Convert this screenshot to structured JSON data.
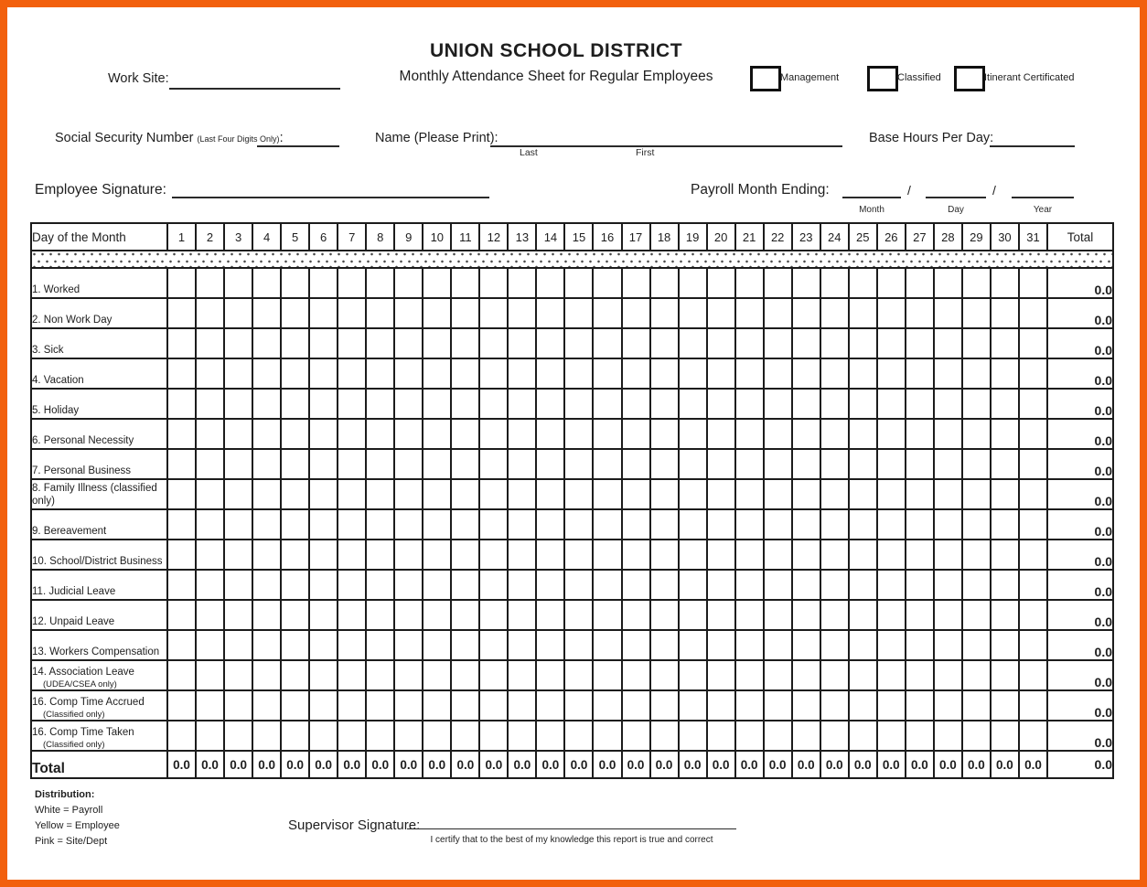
{
  "document": {
    "title": "UNION SCHOOL DISTRICT",
    "subtitle": "Monthly Attendance Sheet for Regular Employees"
  },
  "fields": {
    "work_site_label": "Work Site:",
    "ssn_label": "Social Security Number",
    "ssn_note": "(Last Four Digits Only)",
    "ssn_suffix": ":",
    "name_label": "Name (Please Print):",
    "name_last_hint": "Last",
    "name_first_hint": "First",
    "base_hours_label": "Base Hours Per Day:",
    "employee_signature_label": "Employee Signature:",
    "payroll_month_label": "Payroll Month Ending:",
    "payroll_separator": "/",
    "payroll_month_hint": "Month",
    "payroll_day_hint": "Day",
    "payroll_year_hint": "Year"
  },
  "checkboxes": [
    {
      "label": "Management",
      "checked": false
    },
    {
      "label": "Classified",
      "checked": false
    },
    {
      "label": "Itinerant Certificated",
      "checked": false
    }
  ],
  "table": {
    "corner_header": "Day of the Month",
    "day_headers": [
      "1",
      "2",
      "3",
      "4",
      "5",
      "6",
      "7",
      "8",
      "9",
      "10",
      "11",
      "12",
      "13",
      "14",
      "15",
      "16",
      "17",
      "18",
      "19",
      "20",
      "21",
      "22",
      "23",
      "24",
      "25",
      "26",
      "27",
      "28",
      "29",
      "30",
      "31"
    ],
    "total_header": "Total",
    "rows": [
      {
        "label": "1. Worked",
        "sublabel": "",
        "total": "0.0"
      },
      {
        "label": "2. Non Work Day",
        "sublabel": "",
        "total": "0.0"
      },
      {
        "label": "3. Sick",
        "sublabel": "",
        "total": "0.0"
      },
      {
        "label": "4. Vacation",
        "sublabel": "",
        "total": "0.0"
      },
      {
        "label": "5. Holiday",
        "sublabel": "",
        "total": "0.0"
      },
      {
        "label": "6. Personal Necessity",
        "sublabel": "",
        "total": "0.0"
      },
      {
        "label": "7. Personal Business",
        "sublabel": "",
        "total": "0.0"
      },
      {
        "label": "8. Family Illness (classified only)",
        "sublabel": "",
        "total": "0.0"
      },
      {
        "label": "9. Bereavement",
        "sublabel": "",
        "total": "0.0"
      },
      {
        "label": "10. School/District Business",
        "sublabel": "",
        "total": "0.0"
      },
      {
        "label": "11. Judicial Leave",
        "sublabel": "",
        "total": "0.0"
      },
      {
        "label": "12. Unpaid Leave",
        "sublabel": "",
        "total": "0.0"
      },
      {
        "label": "13. Workers Compensation",
        "sublabel": "",
        "total": "0.0"
      },
      {
        "label": "14. Association Leave",
        "sublabel": "(UDEA/CSEA only)",
        "total": "0.0"
      },
      {
        "label": "16. Comp Time Accrued",
        "sublabel": "(Classified only)",
        "total": "0.0"
      },
      {
        "label": "16. Comp Time Taken",
        "sublabel": "(Classified only)",
        "total": "0.0"
      }
    ],
    "total_row": {
      "label": "Total",
      "day_values": [
        "0.0",
        "0.0",
        "0.0",
        "0.0",
        "0.0",
        "0.0",
        "0.0",
        "0.0",
        "0.0",
        "0.0",
        "0.0",
        "0.0",
        "0.0",
        "0.0",
        "0.0",
        "0.0",
        "0.0",
        "0.0",
        "0.0",
        "0.0",
        "0.0",
        "0.0",
        "0.0",
        "0.0",
        "0.0",
        "0.0",
        "0.0",
        "0.0",
        "0.0",
        "0.0",
        "0.0"
      ],
      "grand_total": "0.0"
    }
  },
  "footer": {
    "distribution_title": "Distribution:",
    "distribution_items": [
      "White = Payroll",
      "Yellow = Employee",
      "Pink = Site/Dept"
    ],
    "supervisor_signature_label": "Supervisor Signature:",
    "certification_text": "I certify that to the best of my knowledge this report is true and correct"
  },
  "colors": {
    "frame_orange": "#F2600D",
    "ink": "#1e1e1e"
  }
}
